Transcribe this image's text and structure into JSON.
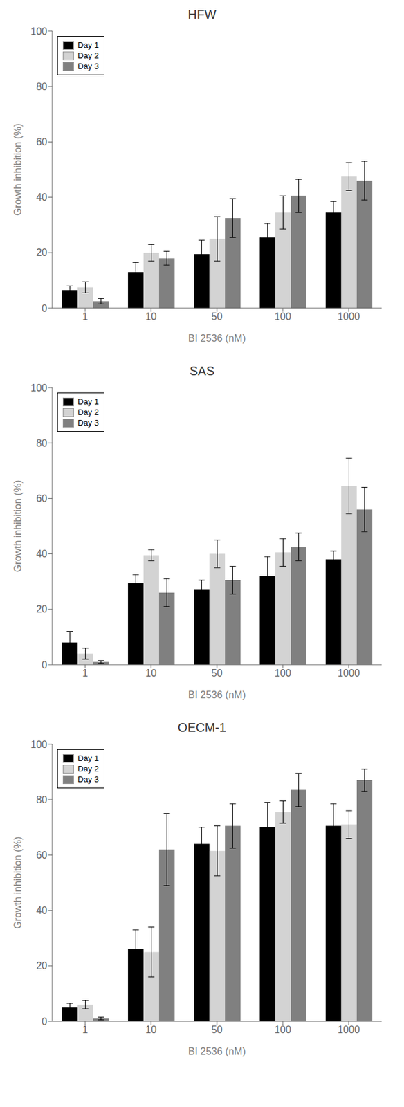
{
  "chart_data": [
    {
      "type": "bar",
      "title": "HFW",
      "xlabel": "BI 2536 (nM)",
      "ylabel": "Growth inhibition (%)",
      "categories": [
        "1",
        "10",
        "50",
        "100",
        "1000"
      ],
      "series": [
        {
          "name": "Day 1",
          "color": "#000000",
          "values": [
            6.5,
            13,
            19.5,
            25.5,
            34.5
          ],
          "errors": [
            1.5,
            3.5,
            5,
            5,
            4
          ]
        },
        {
          "name": "Day 2",
          "color": "#d3d3d3",
          "values": [
            7.5,
            20,
            25,
            34.5,
            47.5
          ],
          "errors": [
            2,
            3,
            8,
            6,
            5
          ]
        },
        {
          "name": "Day 3",
          "color": "#808080",
          "values": [
            2.5,
            18,
            32.5,
            40.5,
            46
          ],
          "errors": [
            1,
            2.5,
            7,
            6,
            7
          ]
        }
      ],
      "ylim": [
        0,
        100
      ],
      "yticks": [
        0,
        20,
        40,
        60,
        80,
        100
      ],
      "grid": false,
      "legend": "upper left"
    },
    {
      "type": "bar",
      "title": "SAS",
      "xlabel": "BI 2536 (nM)",
      "ylabel": "Growth inhibition (%)",
      "categories": [
        "1",
        "10",
        "50",
        "100",
        "1000"
      ],
      "series": [
        {
          "name": "Day 1",
          "color": "#000000",
          "values": [
            8,
            29.5,
            27,
            32,
            38
          ],
          "errors": [
            4,
            3,
            3.5,
            7,
            3
          ]
        },
        {
          "name": "Day 2",
          "color": "#d3d3d3",
          "values": [
            4,
            39.5,
            40,
            40.5,
            64.5
          ],
          "errors": [
            2,
            2,
            5,
            5,
            10
          ]
        },
        {
          "name": "Day 3",
          "color": "#808080",
          "values": [
            1,
            26,
            30.5,
            42.5,
            56
          ],
          "errors": [
            0.5,
            5,
            5,
            5,
            8
          ]
        }
      ],
      "ylim": [
        0,
        100
      ],
      "yticks": [
        0,
        20,
        40,
        60,
        80,
        100
      ],
      "grid": false,
      "legend": "upper left"
    },
    {
      "type": "bar",
      "title": "OECM-1",
      "xlabel": "BI 2536 (nM)",
      "ylabel": "Growth inhibition (%)",
      "categories": [
        "1",
        "10",
        "50",
        "100",
        "1000"
      ],
      "series": [
        {
          "name": "Day 1",
          "color": "#000000",
          "values": [
            5,
            26,
            64,
            70,
            70.5
          ],
          "errors": [
            1.5,
            7,
            6,
            9,
            8
          ]
        },
        {
          "name": "Day 2",
          "color": "#d3d3d3",
          "values": [
            6,
            25,
            61.5,
            75.5,
            71
          ],
          "errors": [
            1.5,
            9,
            9,
            4,
            5
          ]
        },
        {
          "name": "Day 3",
          "color": "#808080",
          "values": [
            1,
            62,
            70.5,
            83.5,
            87
          ],
          "errors": [
            0.5,
            13,
            8,
            6,
            4
          ]
        }
      ],
      "ylim": [
        0,
        100
      ],
      "yticks": [
        0,
        20,
        40,
        60,
        80,
        100
      ],
      "grid": false,
      "legend": "upper left"
    }
  ]
}
